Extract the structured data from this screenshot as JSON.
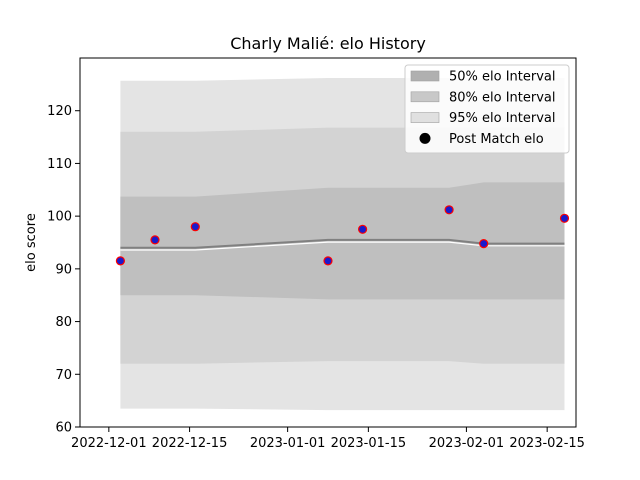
{
  "chart_data": {
    "type": "area",
    "title": "Charly Malié: elo History",
    "xlabel": "",
    "ylabel": "elo score",
    "x_type": "date",
    "xlim": [
      "2022-11-26",
      "2023-02-20"
    ],
    "ylim": [
      60,
      130
    ],
    "x_ticks": [
      "2022-12-01",
      "2022-12-15",
      "2023-01-01",
      "2023-01-15",
      "2023-02-01",
      "2023-02-15"
    ],
    "y_ticks": [
      60,
      70,
      80,
      90,
      100,
      110,
      120
    ],
    "grid": false,
    "legend_position": "top-right",
    "legend": [
      {
        "label": "50% elo Interval",
        "color": "#b0b0b0",
        "kind": "patch"
      },
      {
        "label": "80% elo Interval",
        "color": "#c8c8c8",
        "kind": "patch"
      },
      {
        "label": "95% elo Interval",
        "color": "#e0e0e0",
        "kind": "patch"
      },
      {
        "label": "Post Match elo",
        "color": "#000000",
        "kind": "marker"
      }
    ],
    "bands": {
      "x": [
        "2022-12-03",
        "2022-12-16",
        "2023-01-08",
        "2023-01-29",
        "2023-02-04",
        "2023-02-18"
      ],
      "mean": [
        94.0,
        94.0,
        95.5,
        95.5,
        94.8,
        94.8
      ],
      "i50_low": [
        85.0,
        85.0,
        84.2,
        84.2,
        84.2,
        84.2
      ],
      "i50_high": [
        103.7,
        103.7,
        105.4,
        105.4,
        106.4,
        106.4
      ],
      "i80_low": [
        72.0,
        72.0,
        72.5,
        72.5,
        72.0,
        72.0
      ],
      "i80_high": [
        116.0,
        116.0,
        116.8,
        116.8,
        116.8,
        116.8
      ],
      "i95_low": [
        63.5,
        63.5,
        63.2,
        63.2,
        63.2,
        63.2
      ],
      "i95_high": [
        125.7,
        125.7,
        126.2,
        126.2,
        126.2,
        126.2
      ]
    },
    "colors": {
      "band50": "#bfbfbf",
      "band80": "#d3d3d3",
      "band95": "#e4e4e4",
      "mean_line": "#808080",
      "point_fill": "#1a1acc",
      "point_edge": "#ff0000"
    },
    "series": [
      {
        "name": "Post Match elo",
        "x": [
          "2022-12-03",
          "2022-12-09",
          "2022-12-16",
          "2023-01-08",
          "2023-01-14",
          "2023-01-29",
          "2023-02-04",
          "2023-02-18"
        ],
        "values": [
          91.5,
          95.5,
          98.0,
          91.5,
          97.5,
          101.2,
          94.8,
          99.6
        ]
      }
    ]
  }
}
